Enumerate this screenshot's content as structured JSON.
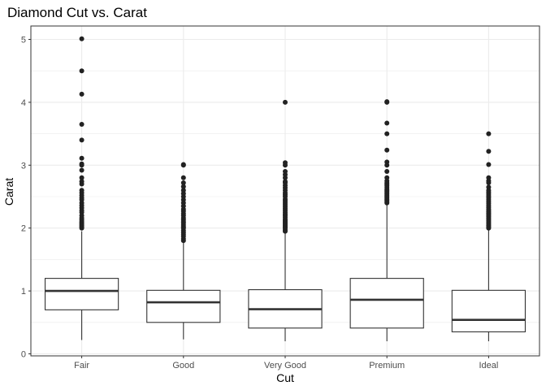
{
  "chart_data": {
    "type": "boxplot",
    "title": "Diamond Cut vs. Carat",
    "xlabel": "Cut",
    "ylabel": "Carat",
    "ylim": [
      0,
      5.2
    ],
    "y_ticks": [
      0,
      1,
      2,
      3,
      4,
      5
    ],
    "y_tick_labels": [
      "0",
      "1",
      "2",
      "3",
      "4",
      "5"
    ],
    "grid": true,
    "colors": {
      "box_stroke": "#333333",
      "outlier": "#222222",
      "grid": "#ebebeb",
      "panel_border": "#333333"
    },
    "categories": [
      "Fair",
      "Good",
      "Very Good",
      "Premium",
      "Ideal"
    ],
    "boxes": [
      {
        "category": "Fair",
        "q1": 0.7,
        "median": 1.0,
        "q3": 1.2,
        "whisker_low": 0.22,
        "whisker_high": 1.95,
        "outliers": [
          2.0,
          2.02,
          2.04,
          2.06,
          2.08,
          2.1,
          2.13,
          2.16,
          2.2,
          2.25,
          2.28,
          2.32,
          2.36,
          2.4,
          2.45,
          2.48,
          2.52,
          2.56,
          2.6,
          2.7,
          2.74,
          2.8,
          2.92,
          3.0,
          3.02,
          3.11,
          3.4,
          3.65,
          4.13,
          4.5,
          5.01
        ]
      },
      {
        "category": "Good",
        "q1": 0.5,
        "median": 0.82,
        "q3": 1.01,
        "whisker_low": 0.23,
        "whisker_high": 1.77,
        "outliers": [
          1.8,
          1.83,
          1.87,
          1.9,
          1.93,
          1.96,
          2.0,
          2.02,
          2.05,
          2.08,
          2.1,
          2.13,
          2.16,
          2.2,
          2.23,
          2.27,
          2.3,
          2.35,
          2.4,
          2.45,
          2.5,
          2.55,
          2.6,
          2.66,
          2.72,
          2.8,
          3.0,
          3.01
        ]
      },
      {
        "category": "Very Good",
        "q1": 0.41,
        "median": 0.71,
        "q3": 1.02,
        "whisker_low": 0.2,
        "whisker_high": 1.93,
        "outliers": [
          1.95,
          1.97,
          2.0,
          2.02,
          2.04,
          2.06,
          2.08,
          2.1,
          2.12,
          2.14,
          2.17,
          2.2,
          2.22,
          2.25,
          2.28,
          2.31,
          2.34,
          2.37,
          2.4,
          2.43,
          2.46,
          2.5,
          2.53,
          2.56,
          2.6,
          2.64,
          2.68,
          2.72,
          2.74,
          2.8,
          2.85,
          2.9,
          3.0,
          3.04,
          4.0
        ]
      },
      {
        "category": "Premium",
        "q1": 0.41,
        "median": 0.86,
        "q3": 1.2,
        "whisker_low": 0.2,
        "whisker_high": 2.38,
        "outliers": [
          2.4,
          2.42,
          2.44,
          2.46,
          2.48,
          2.5,
          2.52,
          2.54,
          2.56,
          2.58,
          2.6,
          2.62,
          2.65,
          2.68,
          2.7,
          2.72,
          2.75,
          2.8,
          2.9,
          3.0,
          3.05,
          3.24,
          3.5,
          3.67,
          4.0,
          4.01
        ]
      },
      {
        "category": "Ideal",
        "q1": 0.35,
        "median": 0.54,
        "q3": 1.01,
        "whisker_low": 0.2,
        "whisker_high": 1.98,
        "outliers": [
          2.0,
          2.02,
          2.04,
          2.06,
          2.08,
          2.1,
          2.12,
          2.14,
          2.16,
          2.18,
          2.2,
          2.22,
          2.24,
          2.26,
          2.28,
          2.3,
          2.33,
          2.36,
          2.39,
          2.42,
          2.45,
          2.48,
          2.51,
          2.54,
          2.57,
          2.6,
          2.65,
          2.72,
          2.75,
          2.8,
          3.01,
          3.22,
          3.5
        ]
      }
    ]
  }
}
